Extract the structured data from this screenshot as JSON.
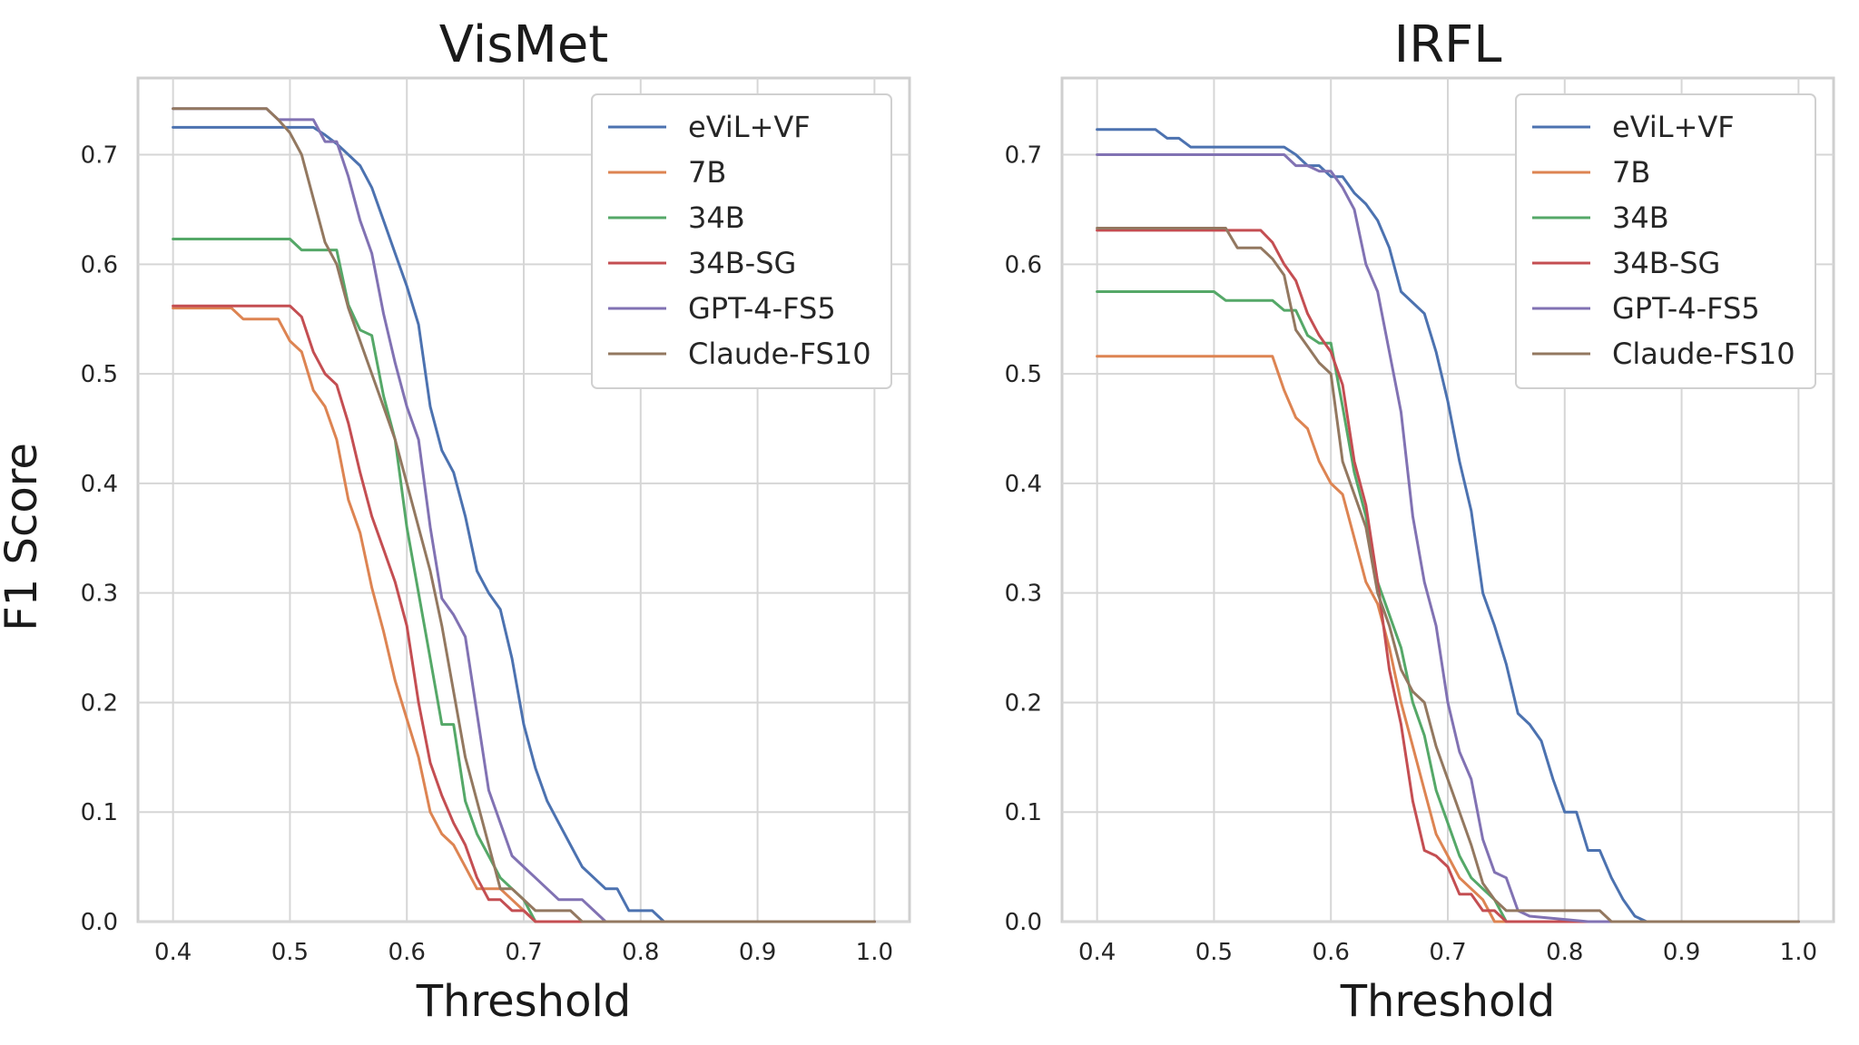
{
  "chart_data": [
    {
      "type": "line",
      "title": "VisMet",
      "xlabel": "Threshold",
      "ylabel": "F1 Score",
      "xlim": [
        0.37,
        1.03
      ],
      "ylim": [
        0.0,
        0.77
      ],
      "xticks": [
        0.4,
        0.5,
        0.6,
        0.7,
        0.8,
        0.9,
        1.0
      ],
      "yticks": [
        0.0,
        0.1,
        0.2,
        0.3,
        0.4,
        0.5,
        0.6,
        0.7
      ],
      "xtick_labels": [
        "0.4",
        "0.5",
        "0.6",
        "0.7",
        "0.8",
        "0.9",
        "1.0"
      ],
      "ytick_labels": [
        "0.0",
        "0.1",
        "0.2",
        "0.3",
        "0.4",
        "0.5",
        "0.6",
        "0.7"
      ],
      "grid": true,
      "legend_position": "top-right",
      "series": [
        {
          "name": "eViL+VF",
          "color": "#4c72b0",
          "x": [
            0.4,
            0.5,
            0.52,
            0.53,
            0.54,
            0.55,
            0.56,
            0.57,
            0.58,
            0.59,
            0.6,
            0.61,
            0.62,
            0.63,
            0.64,
            0.65,
            0.66,
            0.67,
            0.68,
            0.69,
            0.7,
            0.71,
            0.72,
            0.73,
            0.74,
            0.75,
            0.76,
            0.77,
            0.78,
            0.79,
            0.8,
            0.81,
            0.815,
            0.82,
            1.0
          ],
          "y": [
            0.725,
            0.725,
            0.725,
            0.718,
            0.71,
            0.7,
            0.69,
            0.67,
            0.64,
            0.61,
            0.58,
            0.545,
            0.47,
            0.43,
            0.41,
            0.37,
            0.32,
            0.3,
            0.285,
            0.24,
            0.18,
            0.14,
            0.11,
            0.09,
            0.07,
            0.05,
            0.04,
            0.03,
            0.03,
            0.01,
            0.01,
            0.01,
            0.005,
            0.0,
            0.0
          ]
        },
        {
          "name": "7B",
          "color": "#dd8452",
          "x": [
            0.4,
            0.45,
            0.46,
            0.49,
            0.5,
            0.51,
            0.52,
            0.53,
            0.54,
            0.55,
            0.56,
            0.57,
            0.58,
            0.59,
            0.6,
            0.61,
            0.62,
            0.63,
            0.64,
            0.65,
            0.66,
            0.67,
            0.68,
            0.69,
            0.7,
            0.71,
            0.72,
            1.0
          ],
          "y": [
            0.56,
            0.56,
            0.55,
            0.55,
            0.53,
            0.52,
            0.485,
            0.47,
            0.44,
            0.385,
            0.355,
            0.305,
            0.265,
            0.22,
            0.185,
            0.15,
            0.1,
            0.08,
            0.07,
            0.05,
            0.03,
            0.03,
            0.03,
            0.02,
            0.01,
            0.0,
            0.0,
            0.0
          ]
        },
        {
          "name": "34B",
          "color": "#55a868",
          "x": [
            0.4,
            0.5,
            0.51,
            0.53,
            0.54,
            0.55,
            0.56,
            0.57,
            0.58,
            0.59,
            0.6,
            0.61,
            0.62,
            0.63,
            0.64,
            0.65,
            0.66,
            0.67,
            0.68,
            0.69,
            0.7,
            0.71,
            1.0
          ],
          "y": [
            0.623,
            0.623,
            0.613,
            0.613,
            0.613,
            0.563,
            0.54,
            0.535,
            0.48,
            0.44,
            0.36,
            0.3,
            0.24,
            0.18,
            0.18,
            0.11,
            0.08,
            0.06,
            0.04,
            0.03,
            0.02,
            0.0,
            0.0
          ]
        },
        {
          "name": "34B-SG",
          "color": "#c44e52",
          "x": [
            0.4,
            0.5,
            0.51,
            0.52,
            0.53,
            0.54,
            0.55,
            0.56,
            0.57,
            0.58,
            0.59,
            0.6,
            0.61,
            0.62,
            0.63,
            0.64,
            0.65,
            0.66,
            0.67,
            0.68,
            0.69,
            0.7,
            0.71,
            1.0
          ],
          "y": [
            0.562,
            0.562,
            0.552,
            0.52,
            0.5,
            0.49,
            0.455,
            0.41,
            0.37,
            0.34,
            0.31,
            0.27,
            0.2,
            0.145,
            0.115,
            0.09,
            0.07,
            0.04,
            0.02,
            0.02,
            0.01,
            0.01,
            0.0,
            0.0
          ]
        },
        {
          "name": "GPT-4-FS5",
          "color": "#8172b3",
          "x": [
            0.4,
            0.48,
            0.49,
            0.52,
            0.53,
            0.54,
            0.55,
            0.56,
            0.57,
            0.58,
            0.59,
            0.6,
            0.61,
            0.62,
            0.63,
            0.64,
            0.65,
            0.66,
            0.67,
            0.68,
            0.69,
            0.7,
            0.71,
            0.72,
            0.73,
            0.74,
            0.75,
            0.76,
            0.77,
            1.0
          ],
          "y": [
            0.742,
            0.742,
            0.732,
            0.732,
            0.712,
            0.712,
            0.68,
            0.64,
            0.61,
            0.555,
            0.51,
            0.47,
            0.44,
            0.36,
            0.295,
            0.28,
            0.26,
            0.19,
            0.12,
            0.09,
            0.06,
            0.05,
            0.04,
            0.03,
            0.02,
            0.02,
            0.02,
            0.01,
            0.0,
            0.0
          ]
        },
        {
          "name": "Claude-FS10",
          "color": "#937860",
          "x": [
            0.4,
            0.48,
            0.49,
            0.5,
            0.51,
            0.52,
            0.53,
            0.54,
            0.55,
            0.56,
            0.57,
            0.58,
            0.59,
            0.6,
            0.61,
            0.62,
            0.63,
            0.64,
            0.65,
            0.66,
            0.67,
            0.68,
            0.69,
            0.7,
            0.71,
            0.72,
            0.73,
            0.74,
            0.75,
            1.0
          ],
          "y": [
            0.742,
            0.742,
            0.732,
            0.72,
            0.7,
            0.66,
            0.62,
            0.6,
            0.56,
            0.53,
            0.5,
            0.47,
            0.44,
            0.4,
            0.36,
            0.32,
            0.27,
            0.21,
            0.15,
            0.11,
            0.07,
            0.03,
            0.03,
            0.02,
            0.01,
            0.01,
            0.01,
            0.01,
            0.0,
            0.0
          ]
        }
      ]
    },
    {
      "type": "line",
      "title": "IRFL",
      "xlabel": "Threshold",
      "ylabel": "",
      "xlim": [
        0.37,
        1.03
      ],
      "ylim": [
        0.0,
        0.77
      ],
      "xticks": [
        0.4,
        0.5,
        0.6,
        0.7,
        0.8,
        0.9,
        1.0
      ],
      "yticks": [
        0.0,
        0.1,
        0.2,
        0.3,
        0.4,
        0.5,
        0.6,
        0.7
      ],
      "xtick_labels": [
        "0.4",
        "0.5",
        "0.6",
        "0.7",
        "0.8",
        "0.9",
        "1.0"
      ],
      "ytick_labels": [
        "0.0",
        "0.1",
        "0.2",
        "0.3",
        "0.4",
        "0.5",
        "0.6",
        "0.7"
      ],
      "grid": true,
      "legend_position": "top-right",
      "series": [
        {
          "name": "eViL+VF",
          "color": "#4c72b0",
          "x": [
            0.4,
            0.45,
            0.46,
            0.47,
            0.48,
            0.56,
            0.57,
            0.58,
            0.59,
            0.6,
            0.61,
            0.62,
            0.63,
            0.64,
            0.65,
            0.66,
            0.67,
            0.68,
            0.69,
            0.7,
            0.71,
            0.72,
            0.73,
            0.74,
            0.75,
            0.76,
            0.77,
            0.78,
            0.79,
            0.8,
            0.81,
            0.82,
            0.83,
            0.84,
            0.85,
            0.86,
            0.87,
            1.0
          ],
          "y": [
            0.723,
            0.723,
            0.715,
            0.715,
            0.707,
            0.707,
            0.7,
            0.69,
            0.69,
            0.68,
            0.68,
            0.665,
            0.655,
            0.64,
            0.615,
            0.575,
            0.565,
            0.555,
            0.52,
            0.475,
            0.42,
            0.375,
            0.3,
            0.27,
            0.235,
            0.19,
            0.18,
            0.165,
            0.13,
            0.1,
            0.1,
            0.065,
            0.065,
            0.04,
            0.02,
            0.005,
            0.0,
            0.0
          ]
        },
        {
          "name": "7B",
          "color": "#dd8452",
          "x": [
            0.4,
            0.55,
            0.56,
            0.57,
            0.58,
            0.59,
            0.6,
            0.61,
            0.62,
            0.63,
            0.64,
            0.65,
            0.66,
            0.67,
            0.68,
            0.69,
            0.7,
            0.71,
            0.72,
            0.73,
            0.74,
            1.0
          ],
          "y": [
            0.516,
            0.516,
            0.485,
            0.46,
            0.45,
            0.42,
            0.4,
            0.39,
            0.35,
            0.31,
            0.29,
            0.25,
            0.2,
            0.16,
            0.12,
            0.08,
            0.06,
            0.04,
            0.03,
            0.02,
            0.0,
            0.0
          ]
        },
        {
          "name": "34B",
          "color": "#55a868",
          "x": [
            0.4,
            0.5,
            0.51,
            0.55,
            0.56,
            0.57,
            0.58,
            0.59,
            0.6,
            0.61,
            0.62,
            0.63,
            0.64,
            0.65,
            0.66,
            0.67,
            0.68,
            0.69,
            0.7,
            0.71,
            0.72,
            0.73,
            0.74,
            0.75,
            1.0
          ],
          "y": [
            0.575,
            0.575,
            0.567,
            0.567,
            0.558,
            0.558,
            0.535,
            0.528,
            0.528,
            0.47,
            0.41,
            0.37,
            0.31,
            0.28,
            0.25,
            0.2,
            0.17,
            0.12,
            0.09,
            0.06,
            0.04,
            0.03,
            0.02,
            0.0,
            0.0
          ]
        },
        {
          "name": "34B-SG",
          "color": "#c44e52",
          "x": [
            0.4,
            0.54,
            0.55,
            0.56,
            0.57,
            0.58,
            0.59,
            0.6,
            0.61,
            0.62,
            0.63,
            0.64,
            0.65,
            0.66,
            0.67,
            0.68,
            0.69,
            0.7,
            0.71,
            0.72,
            0.73,
            0.74,
            0.75,
            1.0
          ],
          "y": [
            0.631,
            0.631,
            0.62,
            0.6,
            0.585,
            0.555,
            0.535,
            0.52,
            0.49,
            0.42,
            0.38,
            0.31,
            0.23,
            0.18,
            0.11,
            0.065,
            0.06,
            0.05,
            0.025,
            0.025,
            0.01,
            0.01,
            0.0,
            0.0
          ]
        },
        {
          "name": "GPT-4-FS5",
          "color": "#8172b3",
          "x": [
            0.4,
            0.56,
            0.57,
            0.58,
            0.59,
            0.6,
            0.61,
            0.62,
            0.63,
            0.64,
            0.65,
            0.66,
            0.67,
            0.68,
            0.69,
            0.7,
            0.71,
            0.72,
            0.73,
            0.74,
            0.75,
            0.76,
            0.77,
            0.82,
            1.0
          ],
          "y": [
            0.7,
            0.7,
            0.69,
            0.69,
            0.685,
            0.685,
            0.67,
            0.65,
            0.6,
            0.575,
            0.52,
            0.465,
            0.37,
            0.31,
            0.27,
            0.2,
            0.155,
            0.13,
            0.075,
            0.045,
            0.04,
            0.01,
            0.005,
            0.0,
            0.0
          ]
        },
        {
          "name": "Claude-FS10",
          "color": "#937860",
          "x": [
            0.4,
            0.51,
            0.52,
            0.54,
            0.55,
            0.56,
            0.57,
            0.58,
            0.59,
            0.6,
            0.61,
            0.62,
            0.63,
            0.64,
            0.65,
            0.66,
            0.67,
            0.68,
            0.69,
            0.7,
            0.71,
            0.72,
            0.73,
            0.74,
            0.75,
            0.76,
            0.83,
            0.84,
            1.0
          ],
          "y": [
            0.633,
            0.633,
            0.615,
            0.615,
            0.605,
            0.59,
            0.54,
            0.525,
            0.51,
            0.5,
            0.42,
            0.39,
            0.36,
            0.3,
            0.27,
            0.23,
            0.21,
            0.2,
            0.16,
            0.13,
            0.1,
            0.07,
            0.035,
            0.02,
            0.01,
            0.01,
            0.01,
            0.0,
            0.0
          ]
        }
      ]
    }
  ]
}
